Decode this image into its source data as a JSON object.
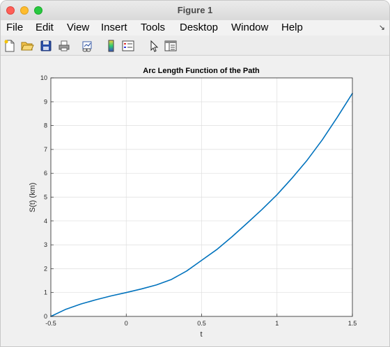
{
  "window": {
    "title": "Figure 1"
  },
  "menu": {
    "items": [
      "File",
      "Edit",
      "View",
      "Insert",
      "Tools",
      "Desktop",
      "Window",
      "Help"
    ],
    "overflow_icon": "dock-arrow-icon"
  },
  "toolbar": {
    "tools": [
      {
        "name": "new-figure-icon"
      },
      {
        "name": "open-file-icon"
      },
      {
        "name": "save-icon"
      },
      {
        "name": "print-icon"
      },
      {
        "name": "link-plot-icon"
      },
      {
        "name": "insert-colorbar-icon"
      },
      {
        "name": "insert-legend-icon"
      },
      {
        "name": "edit-plot-pointer-icon"
      },
      {
        "name": "property-inspector-icon"
      }
    ]
  },
  "chart_data": {
    "type": "line",
    "title": "Arc Length Function of the Path",
    "xlabel": "t",
    "ylabel": "S(t) (km)",
    "xlim": [
      -0.5,
      1.5
    ],
    "ylim": [
      0,
      10
    ],
    "xticks": [
      "-0.5",
      "0",
      "0.5",
      "1",
      "1.5"
    ],
    "yticks": [
      "0",
      "1",
      "2",
      "3",
      "4",
      "5",
      "6",
      "7",
      "8",
      "9",
      "10"
    ],
    "grid": true,
    "color": "#0072bd",
    "series": [
      {
        "x": [
          -0.5,
          -0.4,
          -0.3,
          -0.2,
          -0.1,
          0.0,
          0.1,
          0.2,
          0.3,
          0.4,
          0.5,
          0.6,
          0.7,
          0.8,
          0.9,
          1.0,
          1.1,
          1.2,
          1.3,
          1.4,
          1.5
        ],
        "y": [
          0.0,
          0.3,
          0.52,
          0.7,
          0.86,
          1.0,
          1.15,
          1.32,
          1.55,
          1.9,
          2.35,
          2.8,
          3.33,
          3.9,
          4.48,
          5.1,
          5.8,
          6.55,
          7.4,
          8.35,
          9.35
        ]
      }
    ]
  }
}
